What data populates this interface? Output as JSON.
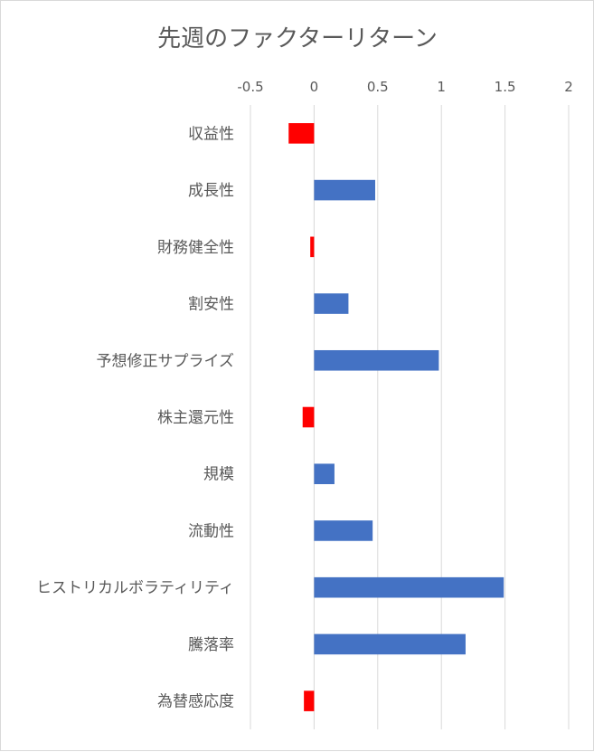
{
  "chart_data": {
    "type": "bar",
    "orientation": "horizontal",
    "title": "先週のファクターリターン",
    "xlabel": "",
    "ylabel": "",
    "xlim": [
      -0.5,
      2
    ],
    "x_ticks": [
      -0.5,
      0,
      0.5,
      1,
      1.5,
      2
    ],
    "x_tick_labels": [
      "-0.5",
      "0",
      "0.5",
      "1",
      "1.5",
      "2"
    ],
    "x_axis_position": "top",
    "grid": true,
    "legend": "none",
    "categories": [
      "収益性",
      "成長性",
      "財務健全性",
      "割安性",
      "予想修正サプライズ",
      "株主還元性",
      "規模",
      "流動性",
      "ヒストリカルボラティリティ",
      "騰落率",
      "為替感応度"
    ],
    "values": [
      -0.2,
      0.48,
      -0.03,
      0.27,
      0.98,
      -0.09,
      0.16,
      0.46,
      1.49,
      1.19,
      -0.08
    ],
    "colors": {
      "positive": "#4472C4",
      "negative": "#FF0000"
    }
  }
}
